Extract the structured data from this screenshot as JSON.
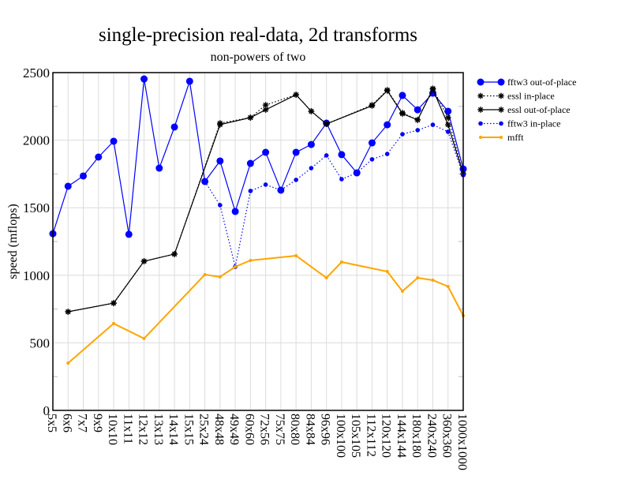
{
  "chart_data": {
    "type": "line",
    "title": "single-precision real-data, 2d transforms",
    "subtitle": "non-powers of two",
    "xlabel": "",
    "ylabel": "speed (mflops)",
    "ylim": [
      0,
      2500
    ],
    "yticks": [
      0,
      500,
      1000,
      1500,
      2000,
      2500
    ],
    "grid": true,
    "legend_position": "right-outside-top",
    "categories": [
      "5x5",
      "6x6",
      "7x7",
      "9x9",
      "10x10",
      "11x11",
      "12x12",
      "13x13",
      "14x14",
      "15x15",
      "25x24",
      "48x48",
      "49x49",
      "60x60",
      "72x56",
      "75x75",
      "80x80",
      "84x84",
      "96x96",
      "100x100",
      "105x105",
      "112x112",
      "120x120",
      "144x144",
      "180x180",
      "240x240",
      "360x360",
      "1000x1000"
    ],
    "series": [
      {
        "name": "fftw3 out-of-place",
        "color": "#0000ff",
        "style": "solid",
        "marker": "circle-large",
        "values": [
          1308,
          1659,
          1735,
          1875,
          1992,
          1303,
          2453,
          1793,
          2097,
          2436,
          1694,
          1846,
          1472,
          1828,
          1910,
          1630,
          1910,
          1968,
          2126,
          1893,
          1758,
          1980,
          2114,
          2331,
          2225,
          2348,
          2214,
          1787
        ]
      },
      {
        "name": "essl in-place",
        "color": "#000000",
        "style": "dotted",
        "marker": "star",
        "values": [
          null,
          730,
          null,
          null,
          794,
          null,
          1104,
          null,
          1157,
          null,
          null,
          2126,
          null,
          2167,
          2260,
          null,
          2336,
          2214,
          2120,
          null,
          null,
          2260,
          2371,
          2202,
          2150,
          2382,
          2167,
          1750
        ]
      },
      {
        "name": "essl out-of-place",
        "color": "#000000",
        "style": "solid",
        "marker": "star",
        "values": [
          null,
          730,
          null,
          null,
          794,
          null,
          1104,
          null,
          1157,
          null,
          null,
          2115,
          null,
          2167,
          2225,
          null,
          2336,
          2214,
          2120,
          null,
          null,
          2255,
          2366,
          2196,
          2150,
          2377,
          2114,
          1750
        ]
      },
      {
        "name": "fftw3 in-place",
        "color": "#0000ff",
        "style": "dotted",
        "marker": "circle-small",
        "values": [
          null,
          null,
          null,
          null,
          null,
          null,
          null,
          null,
          null,
          null,
          1694,
          1519,
          1063,
          1624,
          1671,
          1630,
          1706,
          1793,
          1887,
          1711,
          1758,
          1858,
          1898,
          2044,
          2074,
          2114,
          2062,
          1741
        ]
      },
      {
        "name": "mfft",
        "color": "#ffa500",
        "style": "solid",
        "marker": "circle-tiny",
        "values": [
          null,
          350,
          null,
          null,
          643,
          null,
          532,
          null,
          null,
          null,
          1005,
          988,
          1063,
          1110,
          null,
          null,
          1145,
          null,
          981,
          1098,
          null,
          null,
          1028,
          882,
          981,
          964,
          917,
          701
        ]
      }
    ]
  }
}
